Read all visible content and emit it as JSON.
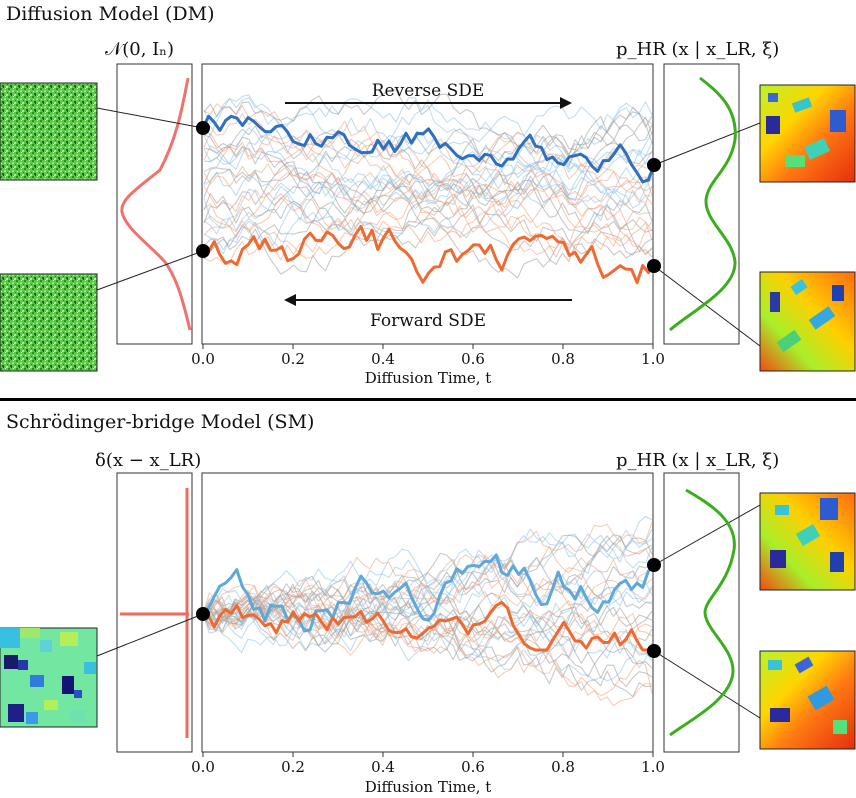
{
  "colors": {
    "noise": "#f0726a",
    "target": "#3aae1e",
    "highlight_blue": "#2f6fbf",
    "highlight_orange": "#ef6a30",
    "delta": "#ef6a5f",
    "bg_traj_blue": "#8ec3e6",
    "bg_traj_orange": "#f2a27e",
    "bg_traj_gray": "#9c9c9c"
  },
  "dm": {
    "title": "Diffusion Model (DM)",
    "left_dist_label": "𝒩(0, Iₙ)",
    "right_dist_label": "p_HR (x | x_LR, ξ)",
    "reverse_label": "Reverse SDE",
    "forward_label": "Forward SDE",
    "xlabel": "Diffusion Time, t",
    "xticks": [
      "0.0",
      "0.2",
      "0.4",
      "0.6",
      "0.8",
      "1.0"
    ],
    "left_images": [
      "noise-sample-top",
      "noise-sample-bottom"
    ],
    "right_images": [
      "hr-sample-top",
      "hr-sample-bottom"
    ]
  },
  "sm": {
    "title": "Schrödinger-bridge Model (SM)",
    "left_dist_label": "δ(x − x_LR)",
    "right_dist_label": "p_HR (x | x_LR, ξ)",
    "xlabel": "Diffusion Time, t",
    "xticks": [
      "0.0",
      "0.2",
      "0.4",
      "0.6",
      "0.8",
      "1.0"
    ],
    "left_images": [
      "lr-sample"
    ],
    "right_images": [
      "hr-sample-top",
      "hr-sample-bottom"
    ]
  },
  "chart_data": [
    {
      "type": "line",
      "title": "Diffusion Model (DM)",
      "xlabel": "Diffusion Time, t",
      "xlim": [
        0,
        1
      ],
      "series": [
        {
          "name": "highlight-blue",
          "color": "#2f6fbf"
        },
        {
          "name": "highlight-orange",
          "color": "#ef6a30"
        }
      ]
    },
    {
      "type": "line",
      "title": "Schrödinger-bridge Model (SM)",
      "xlabel": "Diffusion Time, t",
      "xlim": [
        0,
        1
      ],
      "series": [
        {
          "name": "highlight-blue",
          "color": "#5ea9d9"
        },
        {
          "name": "highlight-orange",
          "color": "#ef6a30"
        }
      ]
    }
  ]
}
